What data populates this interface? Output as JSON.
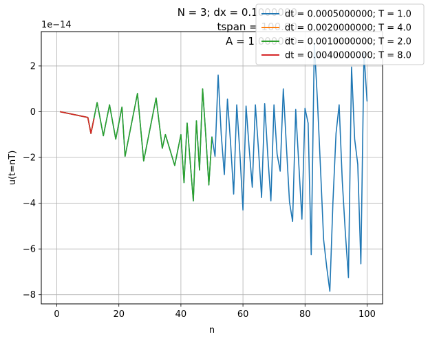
{
  "chart_data": {
    "type": "line",
    "title_lines": [
      "N = 3; dx = 0.1000000",
      "tspan = 100.00",
      "A = 1.000000"
    ],
    "xlabel": "n",
    "ylabel": "u(t=nT)",
    "y_offset_label": "1e−14",
    "y_scale": 1e-14,
    "xlim": [
      -5,
      105
    ],
    "ylim": [
      -8.4,
      3.5
    ],
    "xticks": [
      0,
      20,
      40,
      60,
      80,
      100
    ],
    "yticks": [
      -8,
      -6,
      -4,
      -2,
      0,
      2
    ],
    "xtick_labels": [
      "0",
      "20",
      "40",
      "60",
      "80",
      "100"
    ],
    "ytick_labels": [
      "−8",
      "−6",
      "−4",
      "−2",
      "0",
      "2"
    ],
    "grid": true,
    "legend_position": "top-right",
    "series": [
      {
        "name": "dt = 0.0005000000; T = 1.0",
        "color": "#1f77b4",
        "x": [
          1,
          10,
          11,
          13,
          15,
          17,
          19,
          21,
          22,
          26,
          28,
          32,
          34,
          35,
          38,
          40,
          41,
          42,
          43,
          44,
          45,
          46,
          47,
          48,
          49,
          50,
          51,
          52,
          53,
          54,
          55,
          56,
          57,
          58,
          59,
          60,
          61,
          62,
          63,
          64,
          65,
          66,
          67,
          68,
          69,
          70,
          71,
          72,
          73,
          74,
          75,
          76,
          77,
          78,
          79,
          80,
          81,
          82,
          83,
          84,
          85,
          86,
          87,
          88,
          89,
          90,
          91,
          92,
          93,
          94,
          95,
          96,
          97,
          98,
          99,
          100
        ],
        "values": [
          0,
          -0.25,
          -0.95,
          0.4,
          -1.05,
          0.3,
          -1.2,
          0.2,
          -1.95,
          0.8,
          -2.15,
          0.6,
          -1.6,
          -1.0,
          -2.35,
          -1.0,
          -3.1,
          -0.5,
          -2.2,
          -3.9,
          -0.4,
          -2.55,
          1.0,
          -1.0,
          -3.2,
          -1.1,
          -1.95,
          1.6,
          -1.0,
          -2.75,
          0.55,
          -1.35,
          -3.6,
          0.3,
          -1.8,
          -4.3,
          0.25,
          -1.6,
          -3.3,
          0.3,
          -1.65,
          -3.75,
          0.35,
          -1.9,
          -3.9,
          0.3,
          -1.85,
          -2.6,
          1.0,
          -1.5,
          -3.95,
          -4.8,
          0.1,
          -2.3,
          -4.7,
          0.15,
          -0.5,
          -6.25,
          3.0,
          0.5,
          -2.5,
          -5.6,
          -6.8,
          -7.85,
          -3.95,
          -0.95,
          0.3,
          -3.0,
          -5.3,
          -7.25,
          1.95,
          -1.2,
          -2.3,
          -6.65,
          2.55,
          0.45
        ]
      },
      {
        "name": "dt = 0.0020000000; T = 4.0",
        "color": "#ff7f0e",
        "x": [
          1,
          10,
          11,
          12
        ],
        "values": [
          0,
          -0.25,
          -0.95,
          -0.3
        ]
      },
      {
        "name": "dt = 0.0010000000; T = 2.0",
        "color": "#2ca02c",
        "x": [
          1,
          10,
          11,
          13,
          15,
          17,
          19,
          21,
          22,
          26,
          28,
          32,
          34,
          35,
          38,
          40,
          41,
          42,
          43,
          44,
          45,
          46,
          47,
          48,
          49,
          50
        ],
        "values": [
          0,
          -0.25,
          -0.95,
          0.4,
          -1.05,
          0.3,
          -1.2,
          0.2,
          -1.95,
          0.8,
          -2.15,
          0.6,
          -1.6,
          -1.0,
          -2.35,
          -1.0,
          -3.1,
          -0.5,
          -2.2,
          -3.9,
          -0.4,
          -2.55,
          1.0,
          -1.0,
          -3.2,
          -1.1
        ]
      },
      {
        "name": "dt = 0.0040000000; T = 8.0",
        "color": "#d62728",
        "x": [
          1,
          10,
          11,
          12
        ],
        "values": [
          0,
          -0.25,
          -0.95,
          -0.3
        ]
      }
    ]
  }
}
